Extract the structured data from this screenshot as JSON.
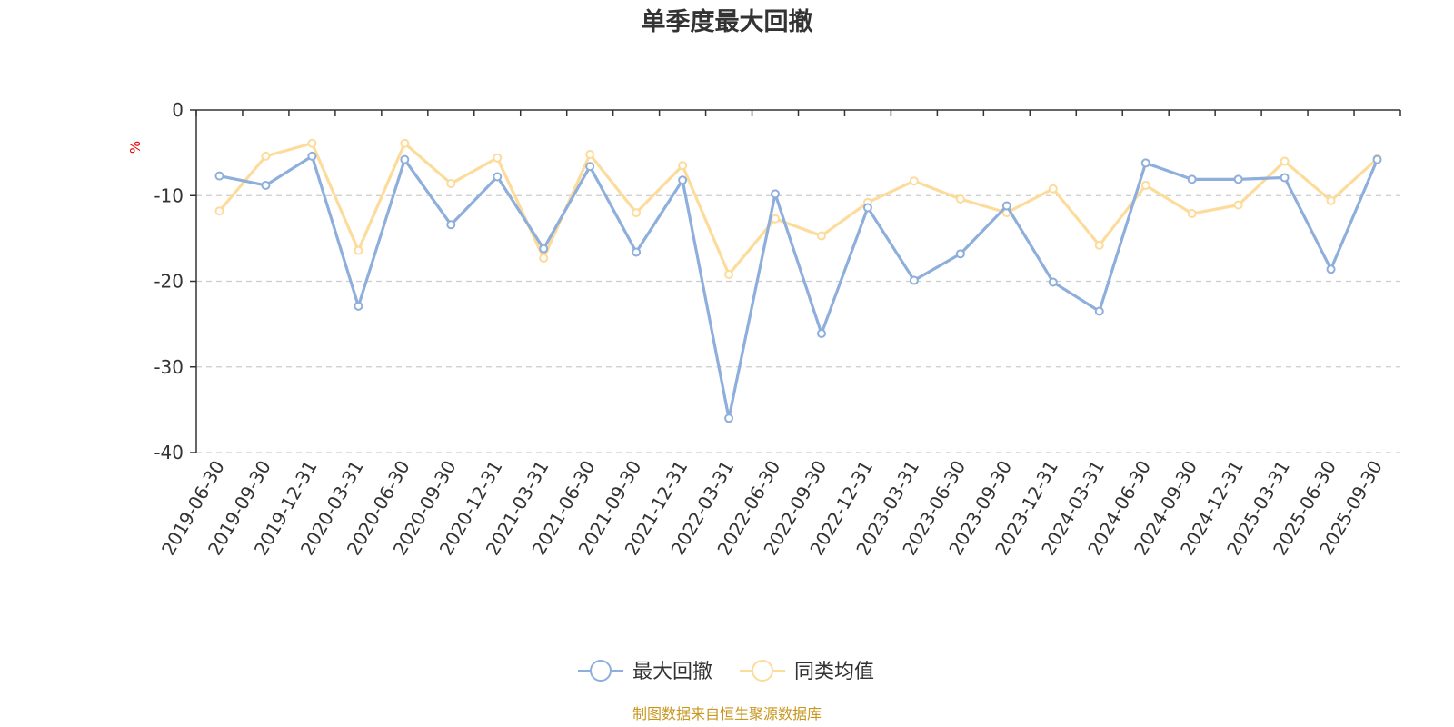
{
  "chart_data": {
    "type": "line",
    "title": "单季度最大回撤",
    "ylabel": "%",
    "xlabel": "",
    "ylim": [
      -40,
      0
    ],
    "yticks": [
      0,
      -10,
      -20,
      -30,
      -40
    ],
    "grid": true,
    "legend_position": "bottom",
    "categories": [
      "2019-06-30",
      "2019-09-30",
      "2019-12-31",
      "2020-03-31",
      "2020-06-30",
      "2020-09-30",
      "2020-12-31",
      "2021-03-31",
      "2021-06-30",
      "2021-09-30",
      "2021-12-31",
      "2022-03-31",
      "2022-06-30",
      "2022-09-30",
      "2022-12-31",
      "2023-03-31",
      "2023-06-30",
      "2023-09-30",
      "2023-12-31",
      "2024-03-31",
      "2024-06-30",
      "2024-09-30",
      "2024-12-31",
      "2025-03-31",
      "2025-06-30",
      "2025-09-30"
    ],
    "series": [
      {
        "name": "最大回撤",
        "color": "#8eaedb",
        "values": [
          -7.7,
          -8.8,
          -5.4,
          -22.9,
          -5.8,
          -13.4,
          -7.8,
          -16.2,
          -6.6,
          -16.6,
          -8.2,
          -36.0,
          -9.8,
          -26.1,
          -11.4,
          -19.9,
          -16.8,
          -11.2,
          -20.1,
          -23.5,
          -6.2,
          -8.1,
          -8.1,
          -7.9,
          -18.6,
          -5.8
        ]
      },
      {
        "name": "同类均值",
        "color": "#fcdb9b",
        "values": [
          -11.8,
          -5.4,
          -3.9,
          -16.4,
          -3.9,
          -8.6,
          -5.6,
          -17.3,
          -5.2,
          -12.0,
          -6.5,
          -19.2,
          -12.7,
          -14.7,
          -10.8,
          -8.3,
          -10.4,
          -12.0,
          -9.2,
          -15.8,
          -8.8,
          -12.1,
          -11.1,
          -6.0,
          -10.6,
          -5.7
        ]
      }
    ]
  },
  "source_text": "制图数据来自恒生聚源数据库"
}
